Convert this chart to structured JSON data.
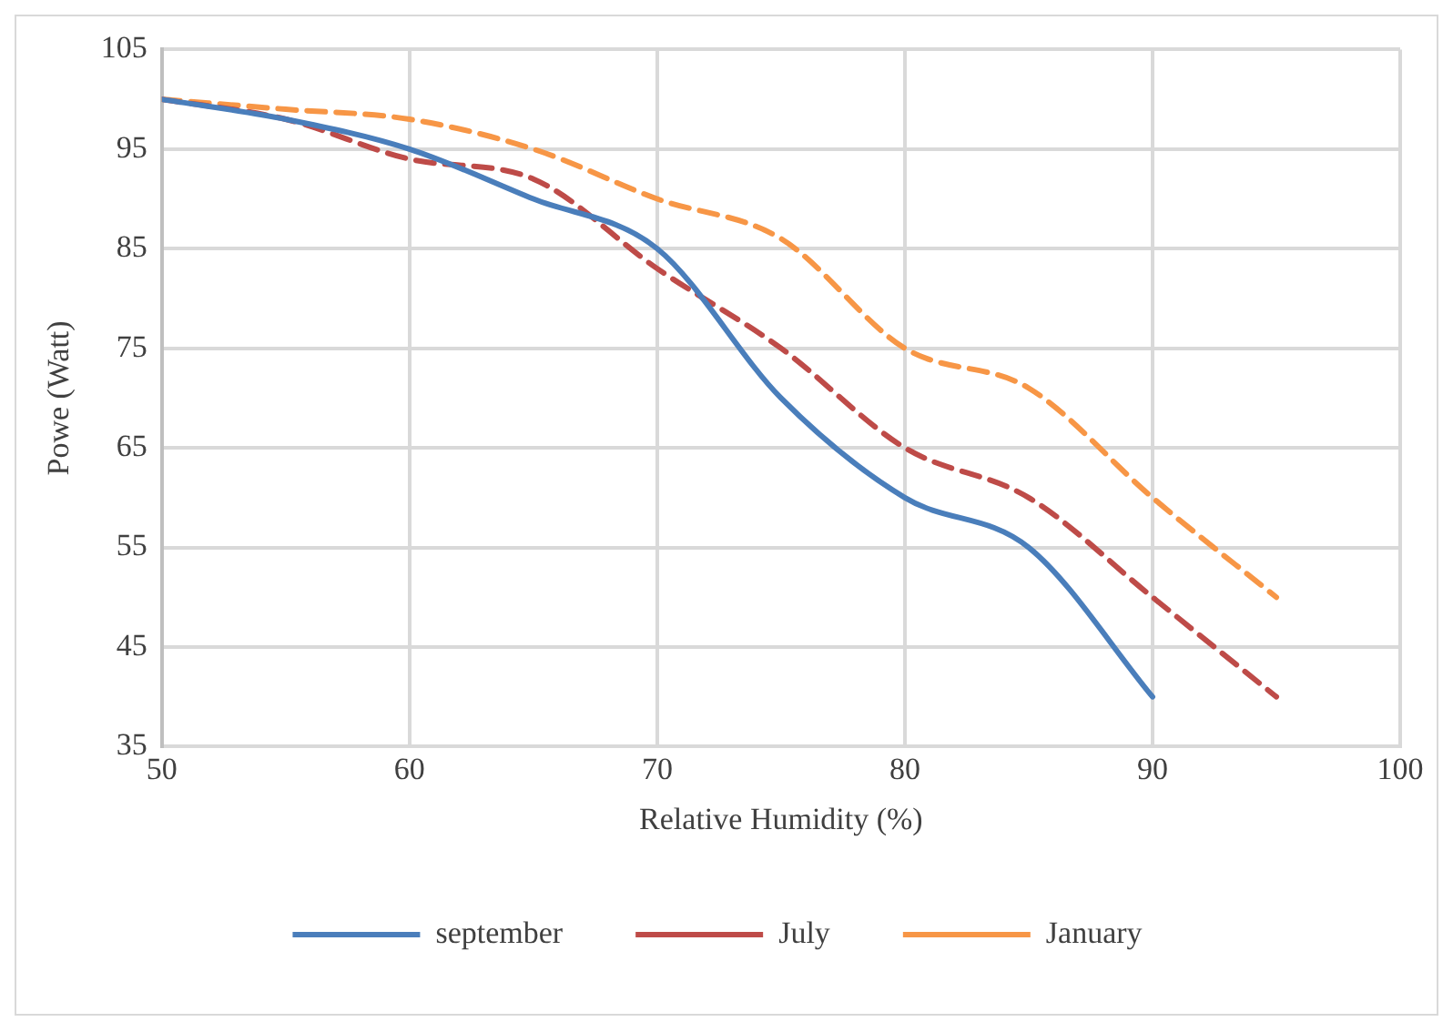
{
  "chart_data": {
    "type": "line",
    "xlabel": "Relative Humidity (%)",
    "ylabel": "Powe (Watt)",
    "xlim": [
      50,
      100
    ],
    "xticks": [
      50,
      60,
      70,
      80,
      90,
      100
    ],
    "ylim": [
      35,
      105
    ],
    "yticks": [
      35,
      45,
      55,
      65,
      75,
      85,
      95,
      105
    ],
    "grid": true,
    "legend": "bottom",
    "marker": "none",
    "series": [
      {
        "name": "september",
        "color": "#4a7ebb",
        "line_style": "solid",
        "x": [
          50,
          55,
          60,
          65,
          70,
          75,
          80,
          85,
          90
        ],
        "values": [
          100,
          98,
          95,
          90,
          85,
          70,
          60,
          55,
          40
        ]
      },
      {
        "name": "July",
        "color": "#be4b48",
        "line_style": "dashed",
        "x": [
          50,
          55,
          60,
          65,
          70,
          75,
          80,
          85,
          90,
          95
        ],
        "values": [
          100,
          98,
          94,
          92,
          83,
          75,
          65,
          60,
          50,
          40
        ]
      },
      {
        "name": "January",
        "color": "#f79646",
        "line_style": "dashed",
        "x": [
          50,
          55,
          60,
          65,
          70,
          75,
          80,
          85,
          90,
          95
        ],
        "values": [
          100,
          99,
          98,
          95,
          90,
          86,
          75,
          71,
          60,
          50
        ]
      }
    ]
  }
}
